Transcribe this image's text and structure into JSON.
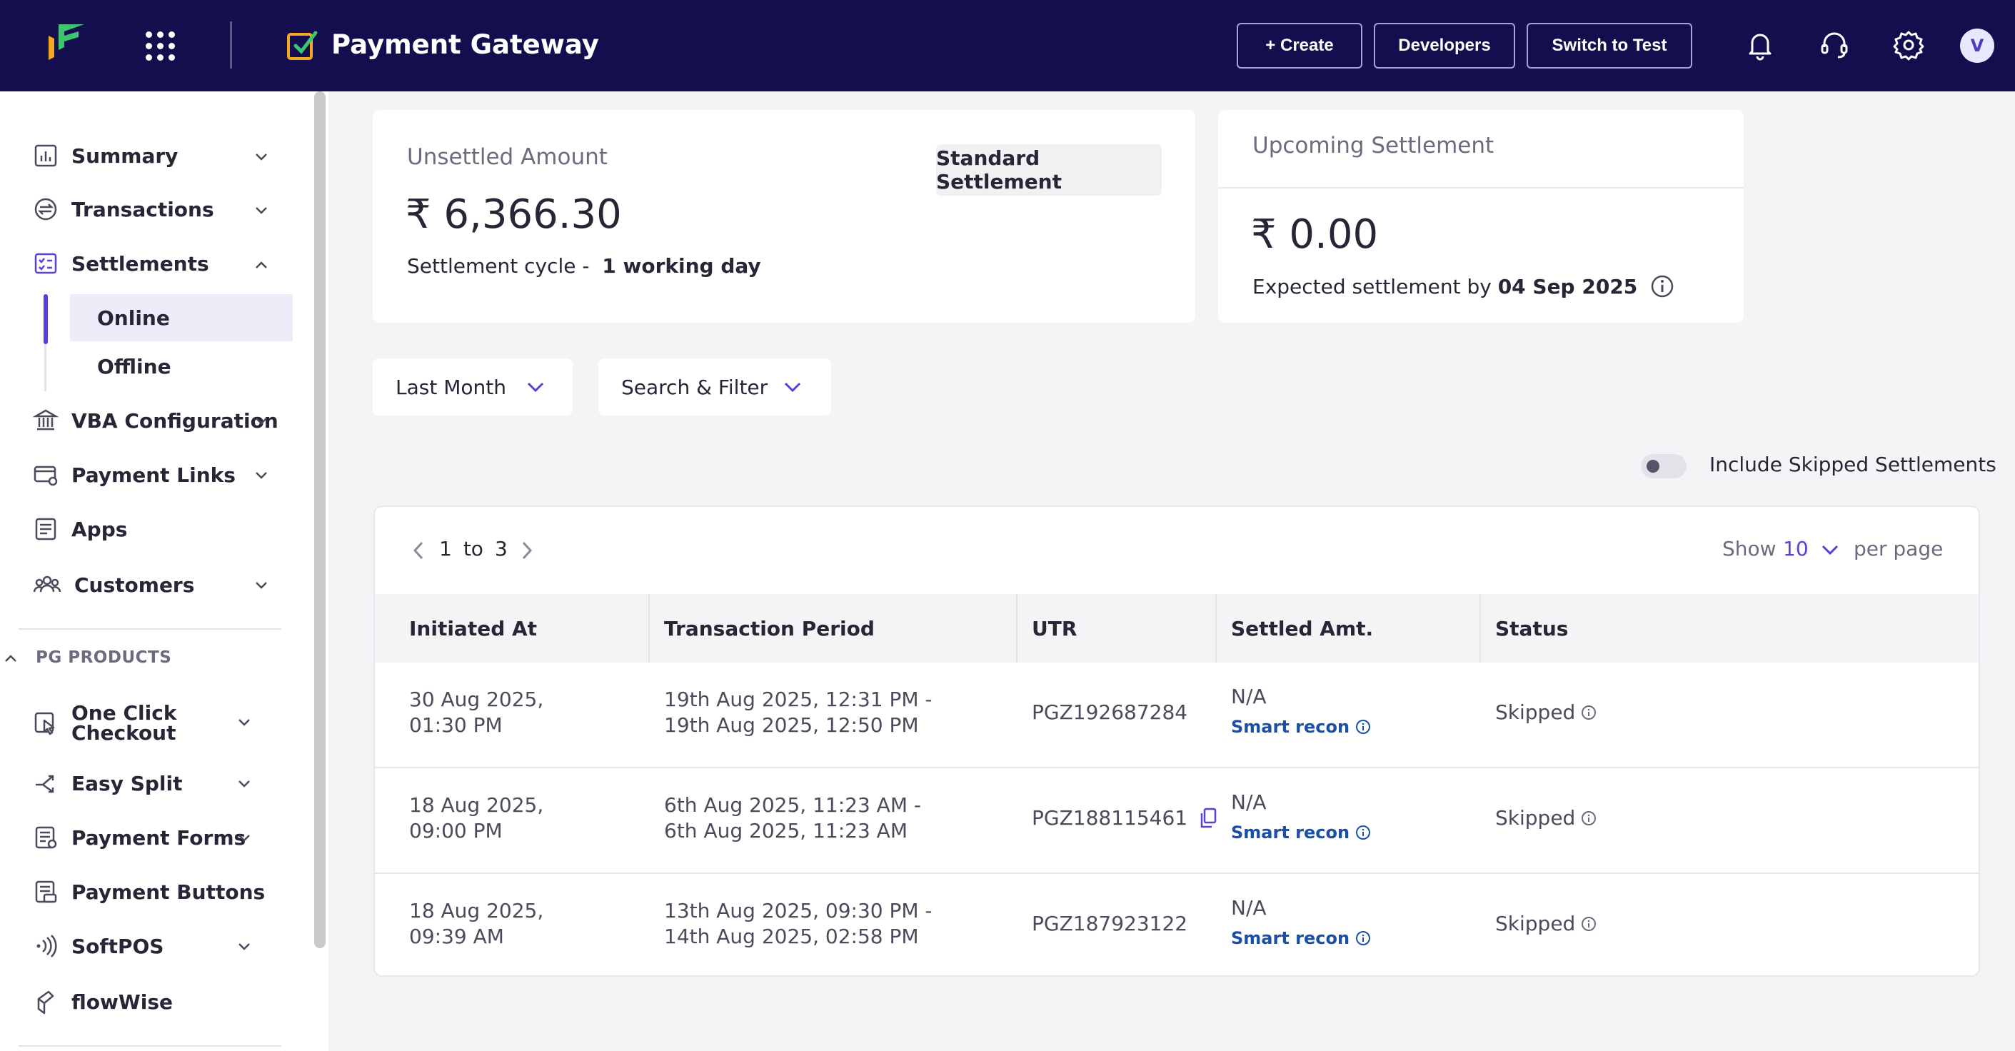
{
  "header": {
    "product_title": "Payment Gateway",
    "create_label": "+ Create",
    "developers_label": "Developers",
    "switch_label": "Switch to Test",
    "avatar_initial": "V"
  },
  "sidebar": {
    "items": [
      {
        "label": "Summary"
      },
      {
        "label": "Transactions"
      },
      {
        "label": "Settlements"
      },
      {
        "label": "VBA Configuration"
      },
      {
        "label": "Payment Links"
      },
      {
        "label": "Apps"
      },
      {
        "label": "Customers"
      }
    ],
    "settlements_sub": [
      {
        "label": "Online"
      },
      {
        "label": "Offline"
      }
    ],
    "section_label": "PG PRODUCTS",
    "products": [
      {
        "label": "One Click"
      },
      {
        "label": "Checkout"
      },
      {
        "label": "Easy Split"
      },
      {
        "label": "Payment Forms"
      },
      {
        "label": "Payment Buttons"
      },
      {
        "label": "SoftPOS"
      },
      {
        "label": "flowWise"
      }
    ]
  },
  "unsettled": {
    "title": "Unsettled Amount",
    "amount": "₹ 6,366.30",
    "cycle_prefix": "Settlement cycle - ",
    "cycle_value": "1 working day",
    "badge": "Standard Settlement"
  },
  "upcoming": {
    "title": "Upcoming Settlement",
    "amount": "₹ 0.00",
    "expected_prefix": "Expected settlement by ",
    "expected_date": "04 Sep 2025"
  },
  "filters": {
    "period": "Last Month",
    "search": "Search & Filter",
    "toggle_label": "Include Skipped Settlements",
    "toggle_on": false
  },
  "pagination": {
    "start": "1",
    "to": "to",
    "end": "3",
    "show_label": "Show",
    "per_page_value": "10",
    "per_page_label": "per page"
  },
  "table": {
    "headers": [
      "Initiated At",
      "Transaction Period",
      "UTR",
      "Settled Amt.",
      "Status"
    ],
    "rows": [
      {
        "initiated_1": "30 Aug 2025,",
        "initiated_2": "01:30 PM",
        "period_1": "19th Aug 2025, 12:31 PM -",
        "period_2": "19th Aug 2025, 12:50 PM",
        "utr": "PGZ192687284",
        "amount": "N/A",
        "recon": "Smart recon",
        "status": "Skipped"
      },
      {
        "initiated_1": "18 Aug 2025,",
        "initiated_2": "09:00 PM",
        "period_1": "6th Aug 2025, 11:23 AM -",
        "period_2": "6th Aug 2025, 11:23 AM",
        "utr": "PGZ188115461",
        "amount": "N/A",
        "recon": "Smart recon",
        "status": "Skipped"
      },
      {
        "initiated_1": "18 Aug 2025,",
        "initiated_2": "09:39 AM",
        "period_1": "13th Aug 2025, 09:30 PM -",
        "period_2": "14th Aug 2025, 02:58 PM",
        "utr": "PGZ187923122",
        "amount": "N/A",
        "recon": "Smart recon",
        "status": "Skipped"
      }
    ]
  },
  "colors": {
    "header_bg": "#130f4f",
    "accent": "#5b3fd8",
    "link": "#1a4fa8"
  }
}
